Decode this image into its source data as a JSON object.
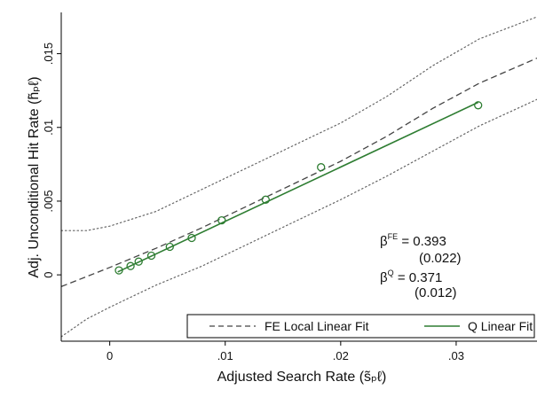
{
  "chart_data": {
    "type": "scatter",
    "xlabel": "Adjusted Search Rate (s̃ₚℓ)",
    "ylabel": "Adj. Unconditional Hit Rate (h̃ₚℓ)",
    "xlim": [
      -0.0042,
      0.037
    ],
    "ylim": [
      -0.0045,
      0.0178
    ],
    "x_ticks": [
      {
        "value": 0,
        "label": "0"
      },
      {
        "value": 0.01,
        "label": ".01"
      },
      {
        "value": 0.02,
        "label": ".02"
      },
      {
        "value": 0.03,
        "label": ".03"
      }
    ],
    "y_ticks": [
      {
        "value": 0,
        "label": "0"
      },
      {
        "value": 0.005,
        "label": ".005"
      },
      {
        "value": 0.01,
        "label": ".01"
      },
      {
        "value": 0.015,
        "label": ".015"
      }
    ],
    "grid": false,
    "legend_position": "bottom-right",
    "series": [
      {
        "name": "FE Local Linear Fit",
        "style": "dashed",
        "color": "#444444",
        "points": [
          [
            -0.0042,
            -0.0008
          ],
          [
            0.0,
            0.0005
          ],
          [
            0.004,
            0.0018
          ],
          [
            0.008,
            0.0032
          ],
          [
            0.012,
            0.0047
          ],
          [
            0.016,
            0.0062
          ],
          [
            0.02,
            0.0077
          ],
          [
            0.024,
            0.0094
          ],
          [
            0.028,
            0.0113
          ],
          [
            0.032,
            0.013
          ],
          [
            0.037,
            0.0147
          ]
        ]
      },
      {
        "name": "Q Linear Fit",
        "style": "solid",
        "color": "#2e7d32",
        "points": [
          [
            0.0007,
            0.0002
          ],
          [
            0.0319,
            0.0117
          ]
        ]
      }
    ],
    "confidence_band": {
      "style": "dotted",
      "color": "#666666",
      "upper": [
        [
          -0.0042,
          0.003
        ],
        [
          -0.002,
          0.003
        ],
        [
          0.0,
          0.0033
        ],
        [
          0.004,
          0.0043
        ],
        [
          0.008,
          0.0058
        ],
        [
          0.012,
          0.0073
        ],
        [
          0.016,
          0.0088
        ],
        [
          0.02,
          0.0103
        ],
        [
          0.024,
          0.0121
        ],
        [
          0.028,
          0.0142
        ],
        [
          0.032,
          0.016
        ],
        [
          0.037,
          0.0175
        ]
      ],
      "lower": [
        [
          -0.0042,
          -0.0042
        ],
        [
          -0.002,
          -0.003
        ],
        [
          0.0,
          -0.0022
        ],
        [
          0.004,
          -0.0007
        ],
        [
          0.008,
          0.0006
        ],
        [
          0.012,
          0.0021
        ],
        [
          0.016,
          0.0036
        ],
        [
          0.02,
          0.0051
        ],
        [
          0.024,
          0.0067
        ],
        [
          0.028,
          0.0084
        ],
        [
          0.032,
          0.0101
        ],
        [
          0.037,
          0.0119
        ]
      ]
    },
    "scatter_points": {
      "color": "#2e7d32",
      "x": [
        0.0008,
        0.0018,
        0.0025,
        0.0036,
        0.0052,
        0.0071,
        0.0097,
        0.0135,
        0.0183,
        0.0319
      ],
      "y": [
        0.0003,
        0.0006,
        0.0009,
        0.0013,
        0.0019,
        0.0025,
        0.0037,
        0.0051,
        0.0073,
        0.0115
      ]
    },
    "annotations": [
      {
        "beta": "β",
        "sup": "FE",
        "eq": " =  0.393",
        "se": "(0.022)"
      },
      {
        "beta": "β",
        "sup": "Q",
        "eq": " =  0.371",
        "se": "(0.012)"
      }
    ]
  }
}
